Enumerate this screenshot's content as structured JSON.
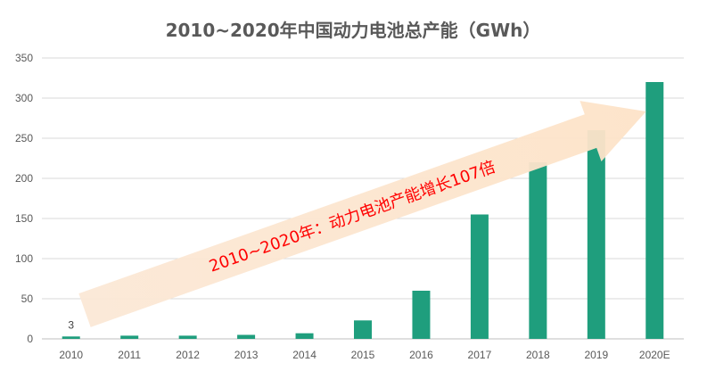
{
  "chart_data": {
    "type": "bar",
    "title": "2010~2020年中国动力电池总产能（GWh）",
    "categories": [
      "2010",
      "2011",
      "2012",
      "2013",
      "2014",
      "2015",
      "2016",
      "2017",
      "2018",
      "2019",
      "2020E"
    ],
    "values": [
      3,
      4,
      4,
      5,
      7,
      23,
      60,
      155,
      220,
      260,
      320
    ],
    "data_labels": [
      {
        "category": "2010",
        "text": "3"
      }
    ],
    "ylim": [
      0,
      350
    ],
    "yticks": [
      0,
      50,
      100,
      150,
      200,
      250,
      300,
      350
    ],
    "grid": true,
    "legend": "none",
    "annotation": {
      "text": "2010~2020年：动力电池产能增长107倍",
      "style": "upward arrow"
    },
    "colors": {
      "bar": "#1f9e7d",
      "title": "#595959",
      "grid": "#d9d9d9",
      "arrow_fill": "#fde3c8",
      "annotation_text": "#ff0000"
    }
  }
}
